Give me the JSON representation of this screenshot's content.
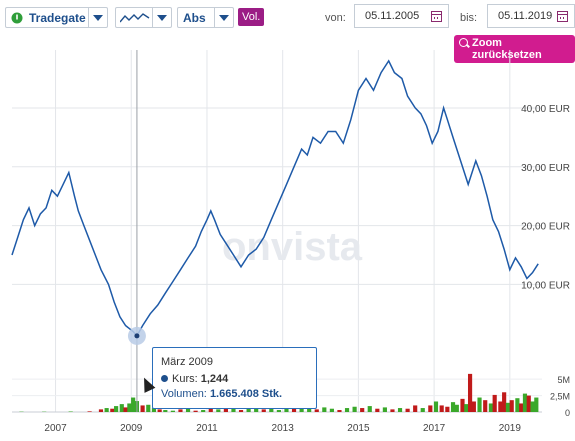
{
  "toolbar": {
    "exchange_label": "Tradegate",
    "scale_label": "Abs",
    "volume_label": "Vol.",
    "from_label": "von:",
    "from_date": "05.11.2005",
    "to_label": "bis:",
    "to_date": "05.11.2019",
    "zoom_reset_label": "Zoom zurücksetzen"
  },
  "watermark": "onvista",
  "tooltip": {
    "month": "März 2009",
    "price_label": "Kurs:",
    "price_value": "1,244",
    "volume_label": "Volumen:",
    "volume_value": "1.665.408 Stk."
  },
  "colors": {
    "line": "#1e5aa8",
    "up": "#3aa82a",
    "down": "#c01a1a",
    "accent": "#d11c8f"
  },
  "chart_data": {
    "type": "line",
    "x_tick_labels": [
      "2007",
      "2009",
      "2011",
      "2013",
      "2015",
      "2017",
      "2019"
    ],
    "y_tick_labels": [
      "10,00 EUR",
      "20,00 EUR",
      "30,00 EUR",
      "40,00 EUR"
    ],
    "ylim": [
      -2,
      49
    ],
    "xlim": [
      2005.85,
      2019.85
    ],
    "volume_tick_labels": [
      "5M",
      "2,5M",
      "0"
    ],
    "volume_ylim": [
      0,
      7
    ],
    "series": [
      {
        "points": [
          [
            2005.85,
            15.0
          ],
          [
            2006.0,
            18.0
          ],
          [
            2006.15,
            21.0
          ],
          [
            2006.3,
            23.0
          ],
          [
            2006.45,
            20.0
          ],
          [
            2006.6,
            22.0
          ],
          [
            2006.75,
            23.0
          ],
          [
            2006.9,
            26.0
          ],
          [
            2007.05,
            25.0
          ],
          [
            2007.2,
            27.0
          ],
          [
            2007.35,
            29.0
          ],
          [
            2007.5,
            25.0
          ],
          [
            2007.6,
            22.5
          ],
          [
            2007.75,
            20.0
          ],
          [
            2007.9,
            17.5
          ],
          [
            2008.05,
            15.0
          ],
          [
            2008.2,
            12.5
          ],
          [
            2008.4,
            10.0
          ],
          [
            2008.55,
            7.0
          ],
          [
            2008.7,
            4.5
          ],
          [
            2008.85,
            3.0
          ],
          [
            2009.05,
            2.0
          ],
          [
            2009.15,
            1.244
          ],
          [
            2009.3,
            3.0
          ],
          [
            2009.5,
            5.0
          ],
          [
            2009.7,
            6.5
          ],
          [
            2009.9,
            8.5
          ],
          [
            2010.1,
            10.5
          ],
          [
            2010.3,
            12.5
          ],
          [
            2010.5,
            14.5
          ],
          [
            2010.7,
            16.5
          ],
          [
            2010.85,
            19.0
          ],
          [
            2011.0,
            21.0
          ],
          [
            2011.1,
            22.5
          ],
          [
            2011.2,
            21.0
          ],
          [
            2011.35,
            18.5
          ],
          [
            2011.5,
            17.0
          ],
          [
            2011.7,
            15.0
          ],
          [
            2011.9,
            13.0
          ],
          [
            2012.1,
            15.0
          ],
          [
            2012.3,
            16.0
          ],
          [
            2012.5,
            18.0
          ],
          [
            2012.7,
            21.0
          ],
          [
            2012.9,
            24.0
          ],
          [
            2013.1,
            27.0
          ],
          [
            2013.3,
            30.0
          ],
          [
            2013.5,
            33.0
          ],
          [
            2013.65,
            32.0
          ],
          [
            2013.8,
            35.0
          ],
          [
            2014.0,
            34.0
          ],
          [
            2014.2,
            36.0
          ],
          [
            2014.4,
            36.0
          ],
          [
            2014.6,
            34.0
          ],
          [
            2014.8,
            38.0
          ],
          [
            2015.0,
            43.0
          ],
          [
            2015.2,
            45.0
          ],
          [
            2015.4,
            43.0
          ],
          [
            2015.6,
            46.0
          ],
          [
            2015.8,
            48.0
          ],
          [
            2015.95,
            46.0
          ],
          [
            2016.15,
            45.0
          ],
          [
            2016.3,
            42.0
          ],
          [
            2016.5,
            40.0
          ],
          [
            2016.65,
            39.0
          ],
          [
            2016.8,
            37.0
          ],
          [
            2016.95,
            34.0
          ],
          [
            2017.1,
            36.0
          ],
          [
            2017.25,
            40.0
          ],
          [
            2017.35,
            38.0
          ],
          [
            2017.5,
            35.0
          ],
          [
            2017.7,
            31.0
          ],
          [
            2017.9,
            27.0
          ],
          [
            2018.1,
            31.0
          ],
          [
            2018.25,
            28.5
          ],
          [
            2018.4,
            25.0
          ],
          [
            2018.55,
            21.0
          ],
          [
            2018.7,
            19.0
          ],
          [
            2018.85,
            16.0
          ],
          [
            2019.0,
            12.5
          ],
          [
            2019.15,
            14.5
          ],
          [
            2019.3,
            13.0
          ],
          [
            2019.45,
            11.0
          ],
          [
            2019.6,
            12.0
          ],
          [
            2019.75,
            13.5
          ]
        ]
      }
    ],
    "volume": [
      [
        2006.1,
        0.05,
        "up"
      ],
      [
        2006.7,
        0.05,
        "up"
      ],
      [
        2007.4,
        0.08,
        "up"
      ],
      [
        2007.9,
        0.1,
        "down"
      ],
      [
        2008.2,
        0.4,
        "down"
      ],
      [
        2008.35,
        0.6,
        "up"
      ],
      [
        2008.5,
        0.5,
        "down"
      ],
      [
        2008.6,
        0.9,
        "up"
      ],
      [
        2008.75,
        1.2,
        "up"
      ],
      [
        2008.85,
        0.7,
        "down"
      ],
      [
        2008.95,
        1.3,
        "up"
      ],
      [
        2009.05,
        2.2,
        "up"
      ],
      [
        2009.15,
        1.665,
        "up"
      ],
      [
        2009.3,
        1.0,
        "down"
      ],
      [
        2009.45,
        1.1,
        "up"
      ],
      [
        2009.6,
        0.6,
        "up"
      ],
      [
        2009.75,
        0.4,
        "down"
      ],
      [
        2009.9,
        0.3,
        "up"
      ],
      [
        2010.1,
        0.2,
        "up"
      ],
      [
        2010.3,
        0.4,
        "down"
      ],
      [
        2010.5,
        0.5,
        "up"
      ],
      [
        2010.7,
        0.2,
        "down"
      ],
      [
        2010.9,
        0.3,
        "up"
      ],
      [
        2011.1,
        0.6,
        "down"
      ],
      [
        2011.3,
        0.4,
        "up"
      ],
      [
        2011.5,
        0.8,
        "down"
      ],
      [
        2011.7,
        0.5,
        "up"
      ],
      [
        2011.9,
        0.3,
        "down"
      ],
      [
        2012.1,
        0.6,
        "up"
      ],
      [
        2012.3,
        0.5,
        "up"
      ],
      [
        2012.5,
        0.4,
        "down"
      ],
      [
        2012.7,
        0.6,
        "up"
      ],
      [
        2012.9,
        0.3,
        "up"
      ],
      [
        2013.1,
        0.7,
        "up"
      ],
      [
        2013.3,
        0.5,
        "down"
      ],
      [
        2013.5,
        0.8,
        "up"
      ],
      [
        2013.7,
        0.6,
        "up"
      ],
      [
        2013.9,
        0.4,
        "down"
      ],
      [
        2014.1,
        0.7,
        "up"
      ],
      [
        2014.3,
        0.5,
        "up"
      ],
      [
        2014.5,
        0.3,
        "down"
      ],
      [
        2014.7,
        0.6,
        "up"
      ],
      [
        2014.9,
        0.8,
        "up"
      ],
      [
        2015.1,
        0.6,
        "down"
      ],
      [
        2015.3,
        0.9,
        "up"
      ],
      [
        2015.5,
        0.5,
        "down"
      ],
      [
        2015.7,
        0.7,
        "up"
      ],
      [
        2015.9,
        0.4,
        "down"
      ],
      [
        2016.1,
        0.6,
        "up"
      ],
      [
        2016.3,
        0.5,
        "down"
      ],
      [
        2016.5,
        1.0,
        "down"
      ],
      [
        2016.7,
        0.6,
        "up"
      ],
      [
        2016.9,
        1.0,
        "down"
      ],
      [
        2017.05,
        1.6,
        "up"
      ],
      [
        2017.2,
        1.0,
        "down"
      ],
      [
        2017.35,
        0.8,
        "down"
      ],
      [
        2017.5,
        1.5,
        "up"
      ],
      [
        2017.6,
        1.1,
        "up"
      ],
      [
        2017.75,
        2.0,
        "down"
      ],
      [
        2017.85,
        1.2,
        "up"
      ],
      [
        2017.95,
        5.8,
        "down"
      ],
      [
        2018.05,
        1.6,
        "down"
      ],
      [
        2018.2,
        2.2,
        "up"
      ],
      [
        2018.35,
        1.8,
        "down"
      ],
      [
        2018.5,
        1.3,
        "up"
      ],
      [
        2018.6,
        2.6,
        "down"
      ],
      [
        2018.75,
        1.6,
        "down"
      ],
      [
        2018.85,
        3.0,
        "down"
      ],
      [
        2018.95,
        1.4,
        "up"
      ],
      [
        2019.05,
        1.8,
        "down"
      ],
      [
        2019.2,
        2.1,
        "up"
      ],
      [
        2019.3,
        1.3,
        "down"
      ],
      [
        2019.4,
        2.8,
        "up"
      ],
      [
        2019.5,
        2.5,
        "down"
      ],
      [
        2019.6,
        1.6,
        "up"
      ],
      [
        2019.7,
        2.2,
        "up"
      ]
    ],
    "highlight": {
      "x": 2009.15,
      "y": 1.244
    }
  }
}
